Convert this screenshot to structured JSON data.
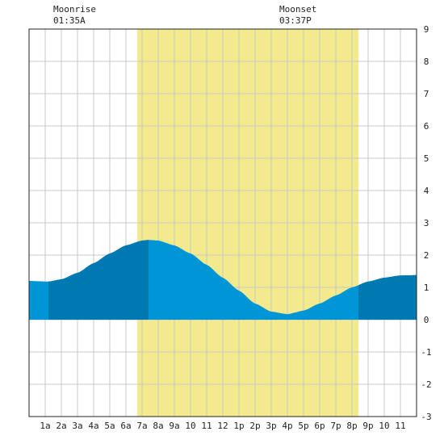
{
  "chart_data": {
    "type": "area",
    "title": "",
    "xlabel": "",
    "ylabel": "",
    "x_tick_labels": [
      "1a",
      "2a",
      "3a",
      "4a",
      "5a",
      "6a",
      "7a",
      "8a",
      "9a",
      "10",
      "11",
      "12",
      "1p",
      "2p",
      "3p",
      "4p",
      "5p",
      "6p",
      "7p",
      "8p",
      "9p",
      "10",
      "11"
    ],
    "xlim_hours": [
      0,
      24
    ],
    "ylim": [
      -3,
      9
    ],
    "y_ticks": [
      9,
      8,
      7,
      6,
      5,
      4,
      3,
      2,
      1,
      0,
      -1,
      -2,
      -3
    ],
    "grid": true,
    "daylight": {
      "start_hour": 6.7,
      "end_hour": 20.4,
      "color": "#f2ea8c"
    },
    "moonrise": {
      "label": "Moonrise",
      "time": "01:35A"
    },
    "moonset": {
      "label": "Moonset",
      "time": "03:37P"
    },
    "series": [
      {
        "x_hours": [
          0,
          1.2,
          2,
          3,
          4,
          5,
          6,
          7,
          7.4,
          8,
          9,
          10,
          11,
          12,
          13,
          14,
          15,
          16,
          17,
          18,
          19,
          20,
          21,
          22,
          23,
          24
        ],
        "y": [
          1.2,
          1.18,
          1.25,
          1.45,
          1.75,
          2.05,
          2.3,
          2.45,
          2.47,
          2.45,
          2.3,
          2.05,
          1.7,
          1.3,
          0.9,
          0.5,
          0.25,
          0.17,
          0.28,
          0.5,
          0.75,
          1.0,
          1.18,
          1.3,
          1.37,
          1.38
        ]
      }
    ],
    "colors": {
      "tide_light": "#0096d6",
      "tide_dark": "#0079b3",
      "grid": "#c8c8c8",
      "axis": "#222222"
    },
    "dark_segments_hours": [
      [
        1.2,
        7.4
      ],
      [
        20.4,
        24
      ]
    ]
  }
}
